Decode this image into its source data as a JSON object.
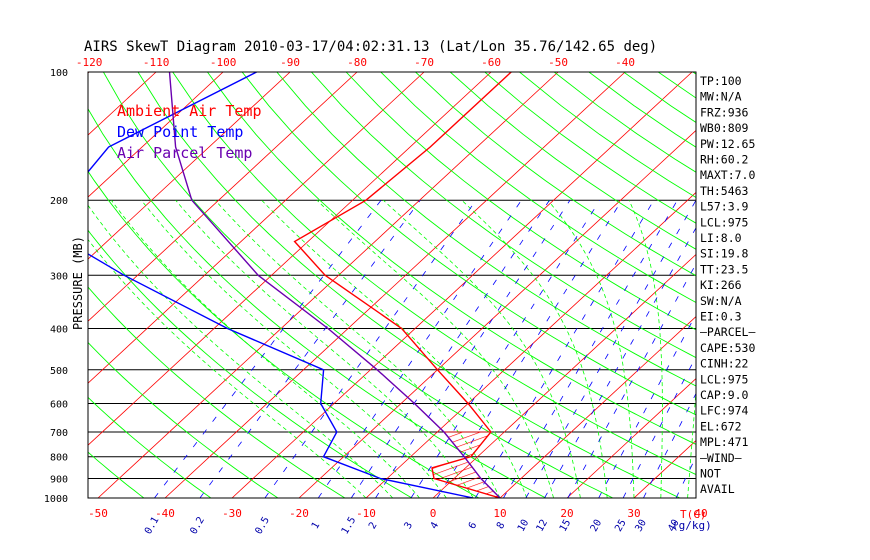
{
  "chart_data": {
    "type": "skewt",
    "title": "AIRS SkewT Diagram 2010-03-17/04:02:31.13 (Lat/Lon 35.76/142.65 deg)",
    "ylabel": "PRESSURE (MB)",
    "x_unit_label": "T(C)",
    "mixing_unit_label": "(g/kg)",
    "pressure_ticks": [
      100,
      200,
      300,
      400,
      500,
      600,
      700,
      800,
      900,
      1000
    ],
    "top_temp_ticks": [
      "-120",
      "-110",
      "-100",
      "-90",
      "-80",
      "-70",
      "-60",
      "-50",
      "-40"
    ],
    "bottom_temp_ticks": [
      "-50",
      "-40",
      "-30",
      "-20",
      "-10",
      "0",
      "10",
      "20",
      "30",
      "40"
    ],
    "mixing_ratio_ticks": [
      "0.1",
      "0.2",
      "0.5",
      "1",
      "1.5",
      "2",
      "3",
      "4",
      "6",
      "8",
      "10",
      "12",
      "15",
      "20",
      "25",
      "30",
      "40"
    ],
    "legend": [
      {
        "name": "Ambient Air Temp",
        "color": "#ff0000"
      },
      {
        "name": "Dew Point Temp",
        "color": "#0000ff"
      },
      {
        "name": "Air Parcel Temp",
        "color": "#6a00b0"
      }
    ],
    "colors": {
      "isotherm": "#ff0000",
      "dry_adiabat": "#00ff00",
      "moist_adiabat": "#00ff00",
      "mixing_ratio": "#0000ff",
      "isobar": "#000000",
      "cape_hatch": "#ff0000",
      "axis_text": "#ff0000",
      "mixing_text": "#0000aa"
    },
    "series": [
      {
        "name": "Ambient Air Temp",
        "points": [
          {
            "p": 100,
            "t": -57
          },
          {
            "p": 150,
            "t": -57
          },
          {
            "p": 200,
            "t": -58
          },
          {
            "p": 250,
            "t": -62
          },
          {
            "p": 300,
            "t": -52
          },
          {
            "p": 400,
            "t": -32
          },
          {
            "p": 500,
            "t": -20
          },
          {
            "p": 600,
            "t": -10
          },
          {
            "p": 700,
            "t": -2
          },
          {
            "p": 800,
            "t": -1
          },
          {
            "p": 850,
            "t": -5
          },
          {
            "p": 900,
            "t": -3
          },
          {
            "p": 1000,
            "t": 10
          }
        ]
      },
      {
        "name": "Dew Point Temp",
        "points": [
          {
            "p": 100,
            "t": -95
          },
          {
            "p": 150,
            "t": -105
          },
          {
            "p": 200,
            "t": -103
          },
          {
            "p": 250,
            "t": -96
          },
          {
            "p": 300,
            "t": -82
          },
          {
            "p": 400,
            "t": -58
          },
          {
            "p": 500,
            "t": -37
          },
          {
            "p": 600,
            "t": -32
          },
          {
            "p": 700,
            "t": -25
          },
          {
            "p": 800,
            "t": -23
          },
          {
            "p": 900,
            "t": -11
          },
          {
            "p": 1000,
            "t": 6
          }
        ]
      },
      {
        "name": "Air Parcel Temp",
        "points": [
          {
            "p": 100,
            "t": -108
          },
          {
            "p": 150,
            "t": -95
          },
          {
            "p": 200,
            "t": -84
          },
          {
            "p": 300,
            "t": -62
          },
          {
            "p": 400,
            "t": -43
          },
          {
            "p": 500,
            "t": -29
          },
          {
            "p": 600,
            "t": -18
          },
          {
            "p": 700,
            "t": -9
          },
          {
            "p": 800,
            "t": -2
          },
          {
            "p": 900,
            "t": 4
          },
          {
            "p": 1000,
            "t": 10
          }
        ]
      }
    ],
    "indices": [
      "TP:100",
      "MW:N/A",
      "FRZ:936",
      "WB0:809",
      "PW:12.65",
      "RH:60.2",
      "MAXT:7.0",
      "TH:5463",
      "L57:3.9",
      "LCL:975",
      "LI:8.0",
      "SI:19.8",
      "TT:23.5",
      "KI:266",
      "SW:N/A",
      "EI:0.3",
      "—PARCEL—",
      "CAPE:530",
      "CINH:22",
      "LCL:975",
      "CAP:9.0",
      "LFC:974",
      "EL:672",
      "MPL:471",
      "—WIND—",
      "NOT",
      "AVAIL"
    ]
  }
}
